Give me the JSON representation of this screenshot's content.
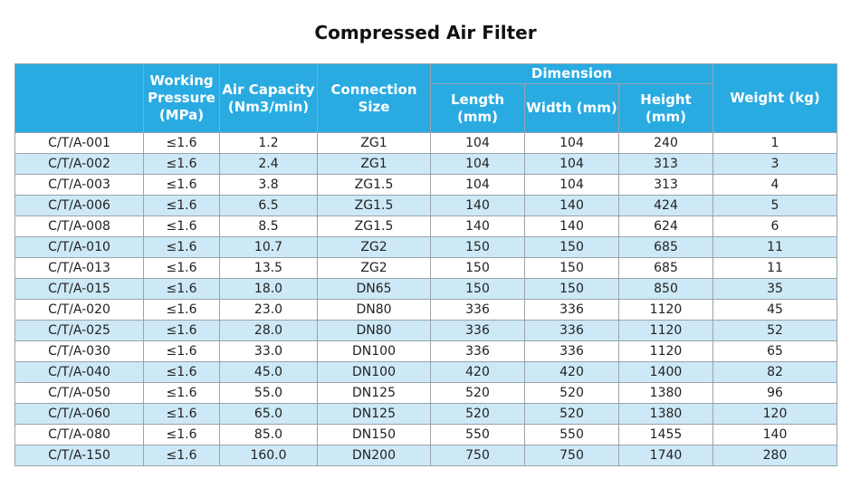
{
  "title": "Compressed Air Filter",
  "colors": {
    "header_bg": "#29abe2",
    "stripe_bg": "#cde9f7"
  },
  "headers": {
    "model": "",
    "pressure": "Working Pressure (MPa)",
    "capacity": "Air Capacity (Nm3/min)",
    "connection": "Connection Size",
    "dimension": "Dimension",
    "length": "Length (mm)",
    "width": "Width (mm)",
    "height": "Height (mm)",
    "weight": "Weight (kg)"
  },
  "rows": [
    [
      "C/T/A-001",
      "≤1.6",
      "1.2",
      "ZG1",
      "104",
      "104",
      "240",
      "1"
    ],
    [
      "C/T/A-002",
      "≤1.6",
      "2.4",
      "ZG1",
      "104",
      "104",
      "313",
      "3"
    ],
    [
      "C/T/A-003",
      "≤1.6",
      "3.8",
      "ZG1.5",
      "104",
      "104",
      "313",
      "4"
    ],
    [
      "C/T/A-006",
      "≤1.6",
      "6.5",
      "ZG1.5",
      "140",
      "140",
      "424",
      "5"
    ],
    [
      "C/T/A-008",
      "≤1.6",
      "8.5",
      "ZG1.5",
      "140",
      "140",
      "624",
      "6"
    ],
    [
      "C/T/A-010",
      "≤1.6",
      "10.7",
      "ZG2",
      "150",
      "150",
      "685",
      "11"
    ],
    [
      "C/T/A-013",
      "≤1.6",
      "13.5",
      "ZG2",
      "150",
      "150",
      "685",
      "11"
    ],
    [
      "C/T/A-015",
      "≤1.6",
      "18.0",
      "DN65",
      "150",
      "150",
      "850",
      "35"
    ],
    [
      "C/T/A-020",
      "≤1.6",
      "23.0",
      "DN80",
      "336",
      "336",
      "1120",
      "45"
    ],
    [
      "C/T/A-025",
      "≤1.6",
      "28.0",
      "DN80",
      "336",
      "336",
      "1120",
      "52"
    ],
    [
      "C/T/A-030",
      "≤1.6",
      "33.0",
      "DN100",
      "336",
      "336",
      "1120",
      "65"
    ],
    [
      "C/T/A-040",
      "≤1.6",
      "45.0",
      "DN100",
      "420",
      "420",
      "1400",
      "82"
    ],
    [
      "C/T/A-050",
      "≤1.6",
      "55.0",
      "DN125",
      "520",
      "520",
      "1380",
      "96"
    ],
    [
      "C/T/A-060",
      "≤1.6",
      "65.0",
      "DN125",
      "520",
      "520",
      "1380",
      "120"
    ],
    [
      "C/T/A-080",
      "≤1.6",
      "85.0",
      "DN150",
      "550",
      "550",
      "1455",
      "140"
    ],
    [
      "C/T/A-150",
      "≤1.6",
      "160.0",
      "DN200",
      "750",
      "750",
      "1740",
      "280"
    ]
  ]
}
